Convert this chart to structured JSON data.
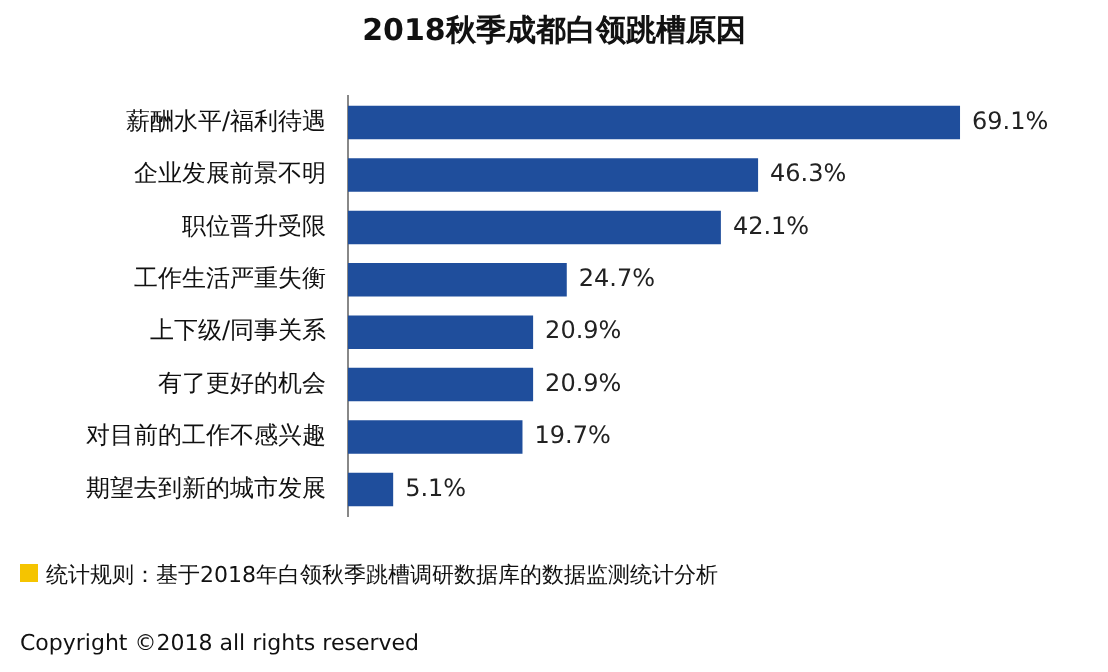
{
  "chart_data": {
    "type": "bar",
    "orientation": "horizontal",
    "title": "2018秋季成都白领跳槽原因",
    "categories": [
      "薪酬水平/福利待遇",
      "企业发展前景不明",
      "职位晋升受限",
      "工作生活严重失衡",
      "上下级/同事关系",
      "有了更好的机会",
      "对目前的工作不感兴趣",
      "期望去到新的城市发展"
    ],
    "values": [
      69.1,
      46.3,
      42.1,
      24.7,
      20.9,
      20.9,
      19.7,
      5.1
    ],
    "value_labels": [
      "69.1%",
      "46.3%",
      "42.1%",
      "24.7%",
      "20.9%",
      "20.9%",
      "19.7%",
      "5.1%"
    ],
    "color": "#1f4e9c",
    "legend": false,
    "tick_labels": "y",
    "annotations": [
      "统计规则：基于2018年白领秋季跳槽调研数据库的数据监测统计分析",
      "Copyright ©2018 all rights reserved"
    ]
  }
}
